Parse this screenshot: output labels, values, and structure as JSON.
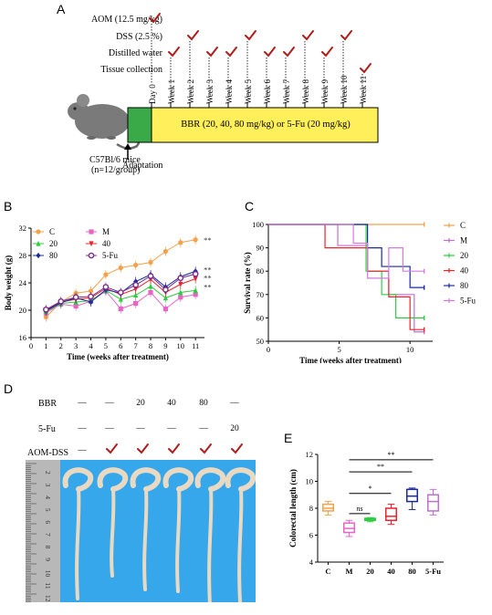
{
  "panelA": {
    "label": "A",
    "rows": [
      "AOM (12.5 mg/kg)",
      "DSS (2.5 %)",
      "Distilled water",
      "Tissue collection"
    ],
    "weeks": [
      "Day 0",
      "Week 1",
      "Week 2",
      "Week 3",
      "Week 4",
      "Week 5",
      "Week 6",
      "Week 7",
      "Week 8",
      "Week 9",
      "Week 10",
      "Week 11"
    ],
    "checks": {
      "aom": [
        0
      ],
      "dss": [
        2,
        5,
        8,
        10
      ],
      "water": [
        1,
        3,
        4,
        6,
        7,
        9
      ],
      "tissue": [
        11
      ]
    },
    "mouse_label": "C57Bl/6 mice",
    "mouse_n": "(n=12/group)",
    "bar_text": "BBR (20, 40, 80 mg/kg) or 5-Fu (20 mg/kg)",
    "adaptation": "Adaptation",
    "colors": {
      "adapt": "#3aaa48",
      "bar": "#ffef5a",
      "check": "#b01c1c"
    }
  },
  "panelB": {
    "label": "B",
    "chart_data": {
      "type": "line",
      "xlabel": "Time (weeks after treatment)",
      "ylabel": "Body weight (g)",
      "xlim": [
        0,
        11.6
      ],
      "ylim": [
        16,
        32
      ],
      "xticks": [
        "0",
        "1",
        "2",
        "3",
        "4",
        "5",
        "6",
        "7",
        "8",
        "9",
        "10",
        "11"
      ],
      "yticks": [
        "16",
        "20",
        "24",
        "28",
        "32"
      ],
      "x": [
        1,
        2,
        3,
        4,
        5,
        6,
        7,
        8,
        9,
        10,
        11
      ],
      "series": [
        {
          "name": "C",
          "color": "#f5a04a",
          "marker": "circle",
          "values": [
            19.0,
            21.2,
            22.5,
            22.8,
            25.2,
            26.2,
            26.6,
            27.0,
            28.6,
            29.9,
            30.3
          ]
        },
        {
          "name": "M",
          "color": "#ea64c8",
          "marker": "square",
          "values": [
            19.6,
            20.9,
            20.6,
            21.3,
            22.8,
            20.2,
            21.0,
            22.6,
            20.2,
            21.9,
            22.3
          ]
        },
        {
          "name": "20",
          "color": "#2ecc40",
          "marker": "triangle",
          "values": [
            19.8,
            21.0,
            21.2,
            21.4,
            22.9,
            21.6,
            22.2,
            23.5,
            21.8,
            22.6,
            22.9
          ]
        },
        {
          "name": "40",
          "color": "#e8242c",
          "marker": "triangle-down",
          "values": [
            20.0,
            21.2,
            21.6,
            21.8,
            23.2,
            22.3,
            23.1,
            24.5,
            22.6,
            23.8,
            24.6
          ]
        },
        {
          "name": "80",
          "color": "#1a2aa0",
          "marker": "diamond",
          "values": [
            19.9,
            21.1,
            21.8,
            21.2,
            23.0,
            22.5,
            24.2,
            25.2,
            23.4,
            24.9,
            25.7
          ]
        },
        {
          "name": "5-Fu",
          "color": "#7a2a88",
          "marker": "circle-open",
          "values": [
            20.1,
            21.3,
            21.9,
            22.0,
            23.4,
            22.6,
            23.7,
            25.0,
            23.0,
            24.7,
            25.3
          ]
        }
      ],
      "annotations": [
        "**",
        "**",
        "**",
        "**"
      ],
      "legend": "top-left"
    }
  },
  "panelC": {
    "label": "C",
    "chart_data": {
      "type": "line",
      "xlabel": "Time (weeks after treatment)",
      "ylabel": "Survival rate (%)",
      "xlim": [
        0,
        11.6
      ],
      "ylim": [
        50,
        100
      ],
      "xticks": [
        "0",
        "5",
        "10"
      ],
      "yticks": [
        "50",
        "60",
        "70",
        "80",
        "90",
        "100"
      ],
      "series": [
        {
          "name": "C",
          "color": "#f5a04a",
          "steps": [
            [
              0,
              100
            ],
            [
              11,
              100
            ]
          ]
        },
        {
          "name": "M",
          "color": "#c070d0",
          "steps": [
            [
              0,
              100
            ],
            [
              4.9,
              100
            ],
            [
              4.9,
              91
            ],
            [
              7,
              91
            ],
            [
              7,
              80
            ],
            [
              8.5,
              80
            ],
            [
              8.5,
              70
            ],
            [
              10.3,
              70
            ],
            [
              10.3,
              54
            ],
            [
              11,
              54
            ]
          ]
        },
        {
          "name": "20",
          "color": "#2ecc40",
          "steps": [
            [
              0,
              100
            ],
            [
              6.9,
              100
            ],
            [
              6.9,
              80
            ],
            [
              8,
              80
            ],
            [
              8,
              70
            ],
            [
              9,
              70
            ],
            [
              9,
              60
            ],
            [
              11,
              60
            ]
          ]
        },
        {
          "name": "40",
          "color": "#e8242c",
          "steps": [
            [
              0,
              100
            ],
            [
              4,
              100
            ],
            [
              4,
              90
            ],
            [
              7,
              90
            ],
            [
              7,
              80
            ],
            [
              8.5,
              80
            ],
            [
              8.5,
              69
            ],
            [
              10,
              69
            ],
            [
              10,
              55
            ],
            [
              11,
              55
            ]
          ]
        },
        {
          "name": "80",
          "color": "#1a2aa0",
          "steps": [
            [
              0,
              100
            ],
            [
              7,
              100
            ],
            [
              7,
              90
            ],
            [
              8,
              90
            ],
            [
              8,
              82
            ],
            [
              10,
              82
            ],
            [
              10,
              73
            ],
            [
              11,
              73
            ]
          ]
        },
        {
          "name": "5-Fu",
          "color": "#d47ae0",
          "steps": [
            [
              0,
              100
            ],
            [
              6,
              100
            ],
            [
              6,
              92
            ],
            [
              7,
              92
            ],
            [
              7,
              77
            ],
            [
              8.5,
              77
            ],
            [
              8.5,
              90
            ],
            [
              9.5,
              90
            ],
            [
              9.5,
              80
            ],
            [
              11,
              80
            ]
          ]
        }
      ],
      "legend": "right"
    }
  },
  "panelD": {
    "label": "D",
    "row_labels": [
      "BBR",
      "5-Fu",
      "AOM-DSS"
    ],
    "bbr": [
      "—",
      "—",
      "20",
      "40",
      "80",
      "—"
    ],
    "fu": [
      "—",
      "—",
      "—",
      "—",
      "—",
      "20"
    ],
    "colors": {
      "bg": "#35a7ea",
      "ruler": "#b8b8b8",
      "colon": "#e9d9c3"
    }
  },
  "panelE": {
    "label": "E",
    "chart_data": {
      "type": "box",
      "ylabel": "Colorectal length (cm)",
      "categories": [
        "C",
        "M",
        "20",
        "40",
        "80",
        "5-Fu"
      ],
      "ylim": [
        4,
        12
      ],
      "yticks": [
        "4",
        "6",
        "8",
        "10",
        "12"
      ],
      "boxes": [
        {
          "name": "C",
          "color": "#f5a04a",
          "min": 7.5,
          "q1": 7.8,
          "median": 8.0,
          "q3": 8.3,
          "max": 8.5
        },
        {
          "name": "M",
          "color": "#ea64c8",
          "min": 5.9,
          "q1": 6.2,
          "median": 6.5,
          "q3": 6.9,
          "max": 7.1
        },
        {
          "name": "20",
          "color": "#2ecc40",
          "min": 7.0,
          "q1": 7.1,
          "median": 7.2,
          "q3": 7.25,
          "max": 7.3
        },
        {
          "name": "40",
          "color": "#e8242c",
          "min": 6.8,
          "q1": 7.1,
          "median": 7.4,
          "q3": 8.0,
          "max": 8.3
        },
        {
          "name": "80",
          "color": "#1a2aa0",
          "min": 7.9,
          "q1": 8.5,
          "median": 8.9,
          "q3": 9.4,
          "max": 9.5
        },
        {
          "name": "5-Fu",
          "color": "#c070d0",
          "min": 7.5,
          "q1": 7.8,
          "median": 8.5,
          "q3": 9.0,
          "max": 9.4
        }
      ],
      "significance": [
        {
          "label": "**",
          "from": "M",
          "to": "5-Fu"
        },
        {
          "label": "**",
          "from": "M",
          "to": "80"
        },
        {
          "label": "*",
          "from": "M",
          "to": "40"
        },
        {
          "label": "ns",
          "from": "M",
          "to": "20"
        }
      ]
    }
  }
}
